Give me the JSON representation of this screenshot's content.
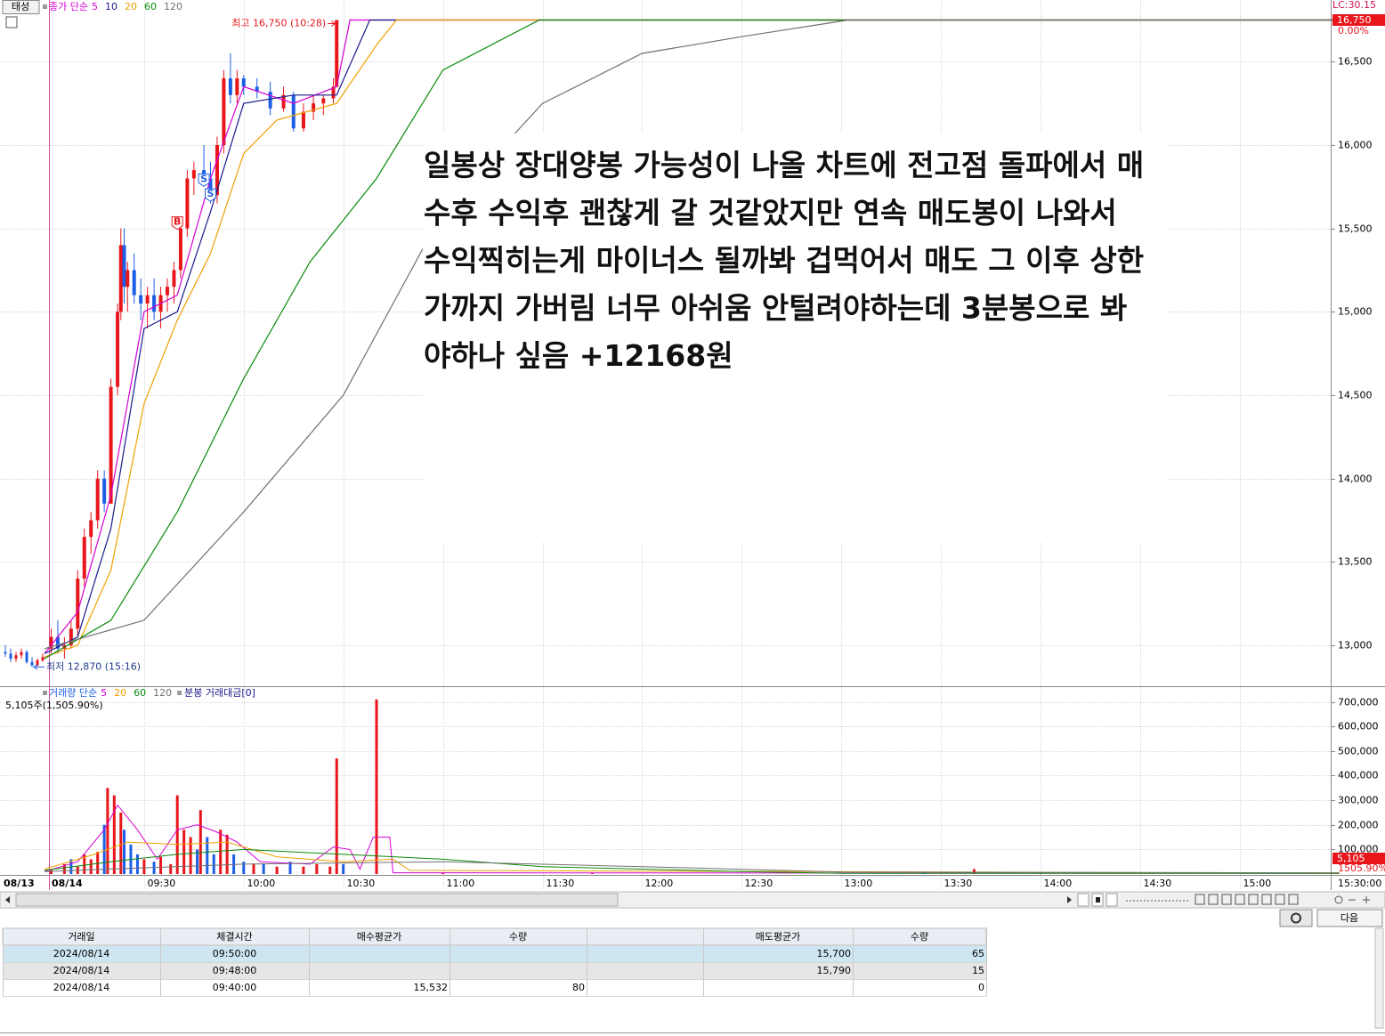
{
  "toolbar": {
    "stock_button": "태성",
    "next_button": "다음"
  },
  "price_chart": {
    "type": "candlestick",
    "legend_label": "종가 단순",
    "ylim": [
      12760,
      16870
    ],
    "yticks": [
      {
        "value": 13000,
        "label": "13,000"
      },
      {
        "value": 13500,
        "label": "13,500"
      },
      {
        "value": 14000,
        "label": "14,000"
      },
      {
        "value": 14500,
        "label": "14,500"
      },
      {
        "value": 15000,
        "label": "15,000"
      },
      {
        "value": 15500,
        "label": "15,500"
      },
      {
        "value": 16000,
        "label": "16,000"
      },
      {
        "value": 16500,
        "label": "16,500"
      }
    ],
    "grid": true,
    "up_color": "#e8161b",
    "down_color": "#1d5ee6",
    "axis_info": "LC:30.15",
    "last_price_label": "16,750",
    "change_label": "0.00%",
    "high_annotation": {
      "text": "최고 16,750 (10:28)",
      "t": "10:28",
      "value": 16750
    },
    "low_annotation": {
      "text": "최저 12,870 (15:16)",
      "value": 12870
    },
    "prev_day_candles": [
      {
        "o": 12960,
        "h": 13000,
        "l": 12930,
        "c": 12950
      },
      {
        "o": 12950,
        "h": 12980,
        "l": 12900,
        "c": 12920
      },
      {
        "o": 12920,
        "h": 12960,
        "l": 12900,
        "c": 12940
      },
      {
        "o": 12940,
        "h": 12980,
        "l": 12920,
        "c": 12960
      },
      {
        "o": 12960,
        "h": 12970,
        "l": 12890,
        "c": 12900
      },
      {
        "o": 12900,
        "h": 12930,
        "l": 12870,
        "c": 12880
      },
      {
        "o": 12880,
        "h": 12920,
        "l": 12870,
        "c": 12910
      },
      {
        "o": 12910,
        "h": 12950,
        "l": 12900,
        "c": 12930
      }
    ],
    "candles": [
      {
        "t": "09:02",
        "o": 12980,
        "h": 13100,
        "l": 12950,
        "c": 13050
      },
      {
        "t": "09:04",
        "o": 13050,
        "h": 13150,
        "l": 12950,
        "c": 12980
      },
      {
        "t": "09:06",
        "o": 12980,
        "h": 13050,
        "l": 12920,
        "c": 13000
      },
      {
        "t": "09:08",
        "o": 13000,
        "h": 13150,
        "l": 12980,
        "c": 13100
      },
      {
        "t": "09:10",
        "o": 13100,
        "h": 13450,
        "l": 13050,
        "c": 13400
      },
      {
        "t": "09:12",
        "o": 13400,
        "h": 13700,
        "l": 13350,
        "c": 13650
      },
      {
        "t": "09:14",
        "o": 13650,
        "h": 13800,
        "l": 13550,
        "c": 13750
      },
      {
        "t": "09:16",
        "o": 13750,
        "h": 14050,
        "l": 13700,
        "c": 14000
      },
      {
        "t": "09:18",
        "o": 14000,
        "h": 14050,
        "l": 13800,
        "c": 13850
      },
      {
        "t": "09:20",
        "o": 13850,
        "h": 14600,
        "l": 13850,
        "c": 14550
      },
      {
        "t": "09:22",
        "o": 14550,
        "h": 15050,
        "l": 14500,
        "c": 15000
      },
      {
        "t": "09:23",
        "o": 15000,
        "h": 15500,
        "l": 14950,
        "c": 15400
      },
      {
        "t": "09:24",
        "o": 15400,
        "h": 15500,
        "l": 15050,
        "c": 15150
      },
      {
        "t": "09:25",
        "o": 15150,
        "h": 15300,
        "l": 15000,
        "c": 15250
      },
      {
        "t": "09:27",
        "o": 15250,
        "h": 15350,
        "l": 15050,
        "c": 15100
      },
      {
        "t": "09:29",
        "o": 15100,
        "h": 15200,
        "l": 14950,
        "c": 15050
      },
      {
        "t": "09:31",
        "o": 15050,
        "h": 15150,
        "l": 14900,
        "c": 15100
      },
      {
        "t": "09:33",
        "o": 15100,
        "h": 15200,
        "l": 14950,
        "c": 15000
      },
      {
        "t": "09:35",
        "o": 15000,
        "h": 15150,
        "l": 14900,
        "c": 15100
      },
      {
        "t": "09:37",
        "o": 15100,
        "h": 15200,
        "l": 15000,
        "c": 15150
      },
      {
        "t": "09:39",
        "o": 15150,
        "h": 15300,
        "l": 15050,
        "c": 15250
      },
      {
        "t": "09:41",
        "o": 15250,
        "h": 15550,
        "l": 15200,
        "c": 15500
      },
      {
        "t": "09:43",
        "o": 15500,
        "h": 15850,
        "l": 15450,
        "c": 15800
      },
      {
        "t": "09:45",
        "o": 15800,
        "h": 15900,
        "l": 15700,
        "c": 15850
      },
      {
        "t": "09:48",
        "o": 15850,
        "h": 16000,
        "l": 15750,
        "c": 15800
      },
      {
        "t": "09:50",
        "o": 15800,
        "h": 15900,
        "l": 15650,
        "c": 15700
      },
      {
        "t": "09:52",
        "o": 15700,
        "h": 16050,
        "l": 15650,
        "c": 16000
      },
      {
        "t": "09:54",
        "o": 16000,
        "h": 16450,
        "l": 15950,
        "c": 16400
      },
      {
        "t": "09:56",
        "o": 16400,
        "h": 16550,
        "l": 16250,
        "c": 16300
      },
      {
        "t": "09:58",
        "o": 16300,
        "h": 16450,
        "l": 16250,
        "c": 16400
      },
      {
        "t": "10:00",
        "o": 16400,
        "h": 16420,
        "l": 16300,
        "c": 16350
      },
      {
        "t": "10:04",
        "o": 16350,
        "h": 16400,
        "l": 16280,
        "c": 16320
      },
      {
        "t": "10:08",
        "o": 16320,
        "h": 16380,
        "l": 16180,
        "c": 16220
      },
      {
        "t": "10:12",
        "o": 16220,
        "h": 16350,
        "l": 16200,
        "c": 16300
      },
      {
        "t": "10:15",
        "o": 16300,
        "h": 16320,
        "l": 16080,
        "c": 16100
      },
      {
        "t": "10:18",
        "o": 16100,
        "h": 16250,
        "l": 16080,
        "c": 16200
      },
      {
        "t": "10:21",
        "o": 16200,
        "h": 16300,
        "l": 16150,
        "c": 16250
      },
      {
        "t": "10:24",
        "o": 16250,
        "h": 16300,
        "l": 16180,
        "c": 16280
      },
      {
        "t": "10:27",
        "o": 16280,
        "h": 16400,
        "l": 16250,
        "c": 16350
      },
      {
        "t": "10:28",
        "o": 16350,
        "h": 16750,
        "l": 16350,
        "c": 16750
      }
    ],
    "trade_markers": [
      {
        "t": "09:40",
        "label": "B",
        "value": 15532,
        "color": "#e8161b"
      },
      {
        "t": "09:48",
        "label": "S",
        "value": 15790,
        "color": "#1d5ee6"
      },
      {
        "t": "09:50",
        "label": "S",
        "value": 15700,
        "color": "#1d5ee6"
      }
    ],
    "series": [
      {
        "name": "5",
        "color": "#d400d4",
        "x": [
          "09:00",
          "09:10",
          "09:20",
          "09:30",
          "09:40",
          "09:50",
          "10:00",
          "10:15",
          "10:28",
          "10:32",
          "15:30"
        ],
        "values": [
          12950,
          13200,
          13900,
          15000,
          15100,
          15800,
          16350,
          16250,
          16350,
          16750,
          16750
        ]
      },
      {
        "name": "10",
        "color": "#1a1a8c",
        "x": [
          "09:00",
          "09:10",
          "09:20",
          "09:30",
          "09:40",
          "09:50",
          "10:00",
          "10:15",
          "10:28",
          "10:38",
          "15:30"
        ],
        "values": [
          12950,
          13050,
          13700,
          14900,
          15000,
          15600,
          16250,
          16300,
          16300,
          16750,
          16750
        ]
      },
      {
        "name": "20",
        "color": "#f0a000",
        "x": [
          "09:00",
          "09:10",
          "09:20",
          "09:30",
          "09:40",
          "09:50",
          "10:00",
          "10:10",
          "10:28",
          "10:40",
          "10:46",
          "15:30"
        ],
        "values": [
          12930,
          13000,
          13450,
          14450,
          14950,
          15350,
          15950,
          16150,
          16250,
          16600,
          16750,
          16750
        ]
      },
      {
        "name": "60",
        "color": "#0a8a0a",
        "x": [
          "09:00",
          "09:20",
          "09:40",
          "10:00",
          "10:20",
          "10:40",
          "11:00",
          "11:29",
          "15:30"
        ],
        "values": [
          12920,
          13150,
          13800,
          14600,
          15300,
          15800,
          16450,
          16750,
          16750
        ]
      },
      {
        "name": "120",
        "color": "#707070",
        "x": [
          "09:00",
          "09:30",
          "10:00",
          "10:30",
          "11:00",
          "11:30",
          "12:00",
          "12:30",
          "13:02",
          "15:30"
        ],
        "values": [
          12980,
          13150,
          13800,
          14500,
          15600,
          16250,
          16550,
          16650,
          16750,
          16750
        ]
      }
    ]
  },
  "volume_chart": {
    "type": "bar",
    "legend_label": "거래량 단순",
    "extra_legend": "분봉 거래대금[0]",
    "current_label": "5,105주(1,505.90%)",
    "last_volume_label": "5,105",
    "ratio_label": "1505.90%",
    "ylim": [
      0,
      760000
    ],
    "yticks": [
      {
        "value": 100000,
        "label": "100,000"
      },
      {
        "value": 200000,
        "label": "200,000"
      },
      {
        "value": 300000,
        "label": "300,000"
      },
      {
        "value": 400000,
        "label": "400,000"
      },
      {
        "value": 500000,
        "label": "500,000"
      },
      {
        "value": 600000,
        "label": "600,000"
      },
      {
        "value": 700000,
        "label": "700,000"
      }
    ],
    "x": [
      "09:02",
      "09:06",
      "09:08",
      "09:10",
      "09:12",
      "09:14",
      "09:16",
      "09:18",
      "09:19",
      "09:21",
      "09:23",
      "09:24",
      "09:26",
      "09:28",
      "09:30",
      "09:33",
      "09:35",
      "09:38",
      "09:40",
      "09:42",
      "09:44",
      "09:46",
      "09:47",
      "09:49",
      "09:51",
      "09:53",
      "09:55",
      "09:57",
      "10:00",
      "10:03",
      "10:06",
      "10:10",
      "10:14",
      "10:18",
      "10:22",
      "10:26",
      "10:28",
      "10:30",
      "10:40",
      "11:00",
      "11:45",
      "13:25",
      "13:40",
      "14:00",
      "15:29"
    ],
    "values": [
      20000,
      40000,
      60000,
      30000,
      80000,
      60000,
      90000,
      200000,
      350000,
      320000,
      250000,
      180000,
      120000,
      80000,
      60000,
      50000,
      70000,
      40000,
      320000,
      180000,
      150000,
      100000,
      260000,
      150000,
      80000,
      180000,
      160000,
      80000,
      50000,
      40000,
      40000,
      30000,
      50000,
      30000,
      40000,
      30000,
      470000,
      40000,
      710000,
      5000,
      3000,
      4000,
      20000,
      5000,
      3000
    ],
    "colors": [
      "#e8161b",
      "#e8161b",
      "#1d5ee6",
      "#e8161b",
      "#e8161b",
      "#e8161b",
      "#e8161b",
      "#1d5ee6",
      "#e8161b",
      "#e8161b",
      "#e8161b",
      "#1d5ee6",
      "#1d5ee6",
      "#1d5ee6",
      "#e8161b",
      "#1d5ee6",
      "#e8161b",
      "#e8161b",
      "#e8161b",
      "#e8161b",
      "#e8161b",
      "#1d5ee6",
      "#e8161b",
      "#1d5ee6",
      "#1d5ee6",
      "#e8161b",
      "#e8161b",
      "#1d5ee6",
      "#1d5ee6",
      "#e8161b",
      "#1d5ee6",
      "#e8161b",
      "#1d5ee6",
      "#e8161b",
      "#e8161b",
      "#e8161b",
      "#e8161b",
      "#1d5ee6",
      "#e8161b",
      "#e8161b",
      "#e8161b",
      "#1d5ee6",
      "#e8161b",
      "#1d5ee6",
      "#e8161b"
    ],
    "series": [
      {
        "name": "5",
        "color": "#d400d4",
        "x": [
          "09:00",
          "09:10",
          "09:18",
          "09:22",
          "09:28",
          "09:34",
          "09:40",
          "09:46",
          "09:52",
          "09:58",
          "10:05",
          "10:20",
          "10:27",
          "10:32",
          "10:35",
          "10:39",
          "10:44",
          "10:45",
          "15:30"
        ],
        "values": [
          10000,
          50000,
          180000,
          280000,
          180000,
          60000,
          180000,
          200000,
          170000,
          130000,
          50000,
          40000,
          110000,
          100000,
          20000,
          150000,
          150000,
          5000,
          3000
        ]
      },
      {
        "name": "20",
        "color": "#f0a000",
        "x": [
          "09:00",
          "09:15",
          "09:25",
          "09:40",
          "09:55",
          "10:10",
          "10:30",
          "10:45",
          "10:50",
          "15:30"
        ],
        "values": [
          20000,
          80000,
          130000,
          120000,
          130000,
          70000,
          50000,
          60000,
          15000,
          3000
        ]
      },
      {
        "name": "60",
        "color": "#0a8a0a",
        "x": [
          "09:00",
          "09:20",
          "09:40",
          "10:00",
          "10:30",
          "11:00",
          "11:30",
          "12:30",
          "13:00",
          "15:30"
        ],
        "values": [
          15000,
          50000,
          80000,
          100000,
          80000,
          60000,
          30000,
          10000,
          3000,
          3000
        ]
      },
      {
        "name": "120",
        "color": "#707070",
        "x": [
          "09:00",
          "10:00",
          "11:00",
          "12:00",
          "13:00",
          "15:30"
        ],
        "values": [
          10000,
          40000,
          50000,
          30000,
          8000,
          5000
        ]
      }
    ]
  },
  "time_axis": {
    "day_labels": [
      "08/13",
      "08/14"
    ],
    "xticks": [
      "09:30",
      "10:00",
      "10:30",
      "11:00",
      "11:30",
      "12:00",
      "12:30",
      "13:00",
      "13:30",
      "14:00",
      "14:30",
      "15:00"
    ],
    "end_label": "15:30:00"
  },
  "overlay": {
    "lines": [
      "일봉상 장대양봉 가능성이 나올 차트에 전고점 돌파에서 매",
      "수후 수익후 괜찮게 갈 것같았지만 연속 매도봉이 나와서",
      "수익찍히는게 마이너스 될까봐 겁먹어서 매도 그 이후 상한",
      "가까지 가버림 너무 아쉬움 안털려야하는데 3분봉으로 봐",
      "야하나 싶음 +12168원"
    ]
  },
  "table": {
    "headers": [
      "거래일",
      "체결시간",
      "매수평균가",
      "수량",
      "매도평균가",
      "수량"
    ],
    "rows": [
      [
        "2024/08/14",
        "09:50:00",
        null,
        null,
        "15,700",
        65
      ],
      [
        "2024/08/14",
        "09:48:00",
        null,
        null,
        "15,790",
        15
      ],
      [
        "2024/08/14",
        "09:40:00",
        "15,532",
        80,
        null,
        0
      ]
    ]
  }
}
